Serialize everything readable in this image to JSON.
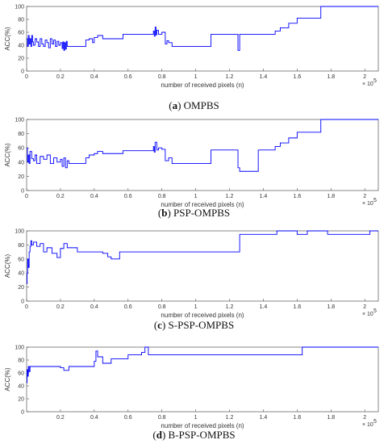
{
  "chart_data": [
    {
      "type": "line",
      "letter": "a",
      "name": "OMPBS",
      "xlabel": "number of received pixels (n)",
      "ylabel": "ACC(%)",
      "exponent_base": "× 10",
      "exponent_power": "5",
      "xlim": [
        0,
        2.08
      ],
      "ylim": [
        0,
        100
      ],
      "xticks": [
        "0",
        "0.2",
        "0.4",
        "0.6",
        "0.8",
        "1",
        "1.2",
        "1.4",
        "1.6",
        "1.8",
        "2"
      ],
      "yticks": [
        "0",
        "20",
        "40",
        "60",
        "80",
        "100"
      ],
      "color": "#0000ff",
      "x": [
        0,
        0.005,
        0.01,
        0.015,
        0.02,
        0.025,
        0.03,
        0.035,
        0.04,
        0.05,
        0.06,
        0.07,
        0.08,
        0.09,
        0.1,
        0.11,
        0.12,
        0.13,
        0.14,
        0.15,
        0.16,
        0.17,
        0.18,
        0.19,
        0.2,
        0.21,
        0.215,
        0.22,
        0.225,
        0.23,
        0.235,
        0.24,
        0.25,
        0.35,
        0.37,
        0.39,
        0.4,
        0.42,
        0.45,
        0.57,
        0.6,
        0.75,
        0.755,
        0.76,
        0.765,
        0.77,
        0.78,
        0.8,
        0.82,
        0.83,
        0.84,
        0.86,
        1.09,
        1.25,
        1.26,
        1.37,
        1.47,
        1.5,
        1.55,
        1.6,
        1.7,
        1.74,
        2.08
      ],
      "y": [
        50,
        38,
        55,
        42,
        50,
        38,
        55,
        45,
        40,
        50,
        45,
        38,
        50,
        42,
        38,
        48,
        44,
        36,
        50,
        42,
        48,
        38,
        46,
        40,
        44,
        35,
        45,
        32,
        44,
        34,
        46,
        38,
        38,
        48,
        50,
        44,
        52,
        55,
        50,
        57,
        57,
        62,
        54,
        68,
        56,
        63,
        57,
        60,
        42,
        47,
        44,
        38,
        57,
        32,
        57,
        57,
        62,
        67,
        74,
        82,
        82,
        100,
        100
      ]
    },
    {
      "type": "line",
      "letter": "b",
      "name": "PSP-OMPBS",
      "xlabel": "number of received pixels (n)",
      "ylabel": "ACC(%)",
      "exponent_base": "× 10",
      "exponent_power": "5",
      "xlim": [
        0,
        2.08
      ],
      "ylim": [
        0,
        100
      ],
      "xticks": [
        "0",
        "0.2",
        "0.4",
        "0.6",
        "0.8",
        "1",
        "1.2",
        "1.4",
        "1.6",
        "1.8",
        "2"
      ],
      "yticks": [
        "0",
        "20",
        "40",
        "60",
        "80",
        "100"
      ],
      "color": "#0000ff",
      "x": [
        0,
        0.005,
        0.01,
        0.015,
        0.02,
        0.03,
        0.04,
        0.05,
        0.06,
        0.08,
        0.1,
        0.12,
        0.14,
        0.16,
        0.18,
        0.2,
        0.21,
        0.22,
        0.23,
        0.24,
        0.25,
        0.35,
        0.37,
        0.4,
        0.42,
        0.45,
        0.57,
        0.6,
        0.75,
        0.755,
        0.76,
        0.77,
        0.78,
        0.8,
        0.82,
        0.84,
        0.86,
        1.09,
        1.25,
        1.26,
        1.37,
        1.47,
        1.5,
        1.55,
        1.6,
        1.7,
        1.74,
        2.08
      ],
      "y": [
        60,
        40,
        50,
        38,
        55,
        45,
        42,
        50,
        38,
        48,
        44,
        50,
        38,
        46,
        40,
        44,
        34,
        46,
        32,
        42,
        38,
        46,
        50,
        52,
        55,
        52,
        56,
        56,
        62,
        54,
        68,
        57,
        60,
        58,
        42,
        46,
        38,
        57,
        32,
        27,
        57,
        62,
        67,
        74,
        82,
        82,
        100,
        100
      ]
    },
    {
      "type": "line",
      "letter": "c",
      "name": "S-PSP-OMPBS",
      "xlabel": "number of received pixels (n)",
      "ylabel": "ACC(%)",
      "exponent_base": "× 10",
      "exponent_power": "5",
      "xlim": [
        0,
        2.08
      ],
      "ylim": [
        0,
        100
      ],
      "xticks": [
        "0",
        "0.2",
        "0.4",
        "0.6",
        "0.8",
        "1",
        "1.2",
        "1.4",
        "1.6",
        "1.8",
        "2"
      ],
      "yticks": [
        "0",
        "20",
        "40",
        "60",
        "80",
        "100"
      ],
      "color": "#0000ff",
      "x": [
        0,
        0.003,
        0.006,
        0.01,
        0.015,
        0.02,
        0.025,
        0.03,
        0.04,
        0.06,
        0.08,
        0.1,
        0.12,
        0.15,
        0.18,
        0.2,
        0.22,
        0.24,
        0.3,
        0.45,
        0.48,
        0.5,
        0.55,
        1.26,
        1.48,
        1.6,
        1.66,
        1.78,
        2.03,
        2.08
      ],
      "y": [
        25,
        40,
        60,
        48,
        70,
        78,
        86,
        80,
        84,
        78,
        82,
        70,
        76,
        68,
        62,
        75,
        82,
        76,
        70,
        68,
        63,
        60,
        70,
        95,
        100,
        95,
        100,
        95,
        100,
        100
      ]
    },
    {
      "type": "line",
      "letter": "d",
      "name": "B-PSP-OMPBS",
      "xlabel": "number of received pixels (n)",
      "ylabel": "ACC(%)",
      "exponent_base": "× 10",
      "exponent_power": "5",
      "xlim": [
        0,
        2.08
      ],
      "ylim": [
        0,
        100
      ],
      "xticks": [
        "0.2",
        "0.4",
        "0.6",
        "0.8",
        "1",
        "1.2",
        "1.4",
        "1.6",
        "1.8",
        "2"
      ],
      "yticks": [
        "0",
        "20",
        "40",
        "60",
        "80",
        "100"
      ],
      "color": "#0000ff",
      "x": [
        0,
        0.003,
        0.006,
        0.01,
        0.015,
        0.02,
        0.16,
        0.2,
        0.22,
        0.25,
        0.4,
        0.41,
        0.42,
        0.45,
        0.5,
        0.6,
        0.68,
        0.7,
        0.72,
        1.63,
        2.08
      ],
      "y": [
        45,
        65,
        55,
        70,
        62,
        70,
        70,
        68,
        64,
        70,
        78,
        94,
        85,
        75,
        82,
        88,
        92,
        100,
        88,
        100,
        100
      ]
    }
  ]
}
